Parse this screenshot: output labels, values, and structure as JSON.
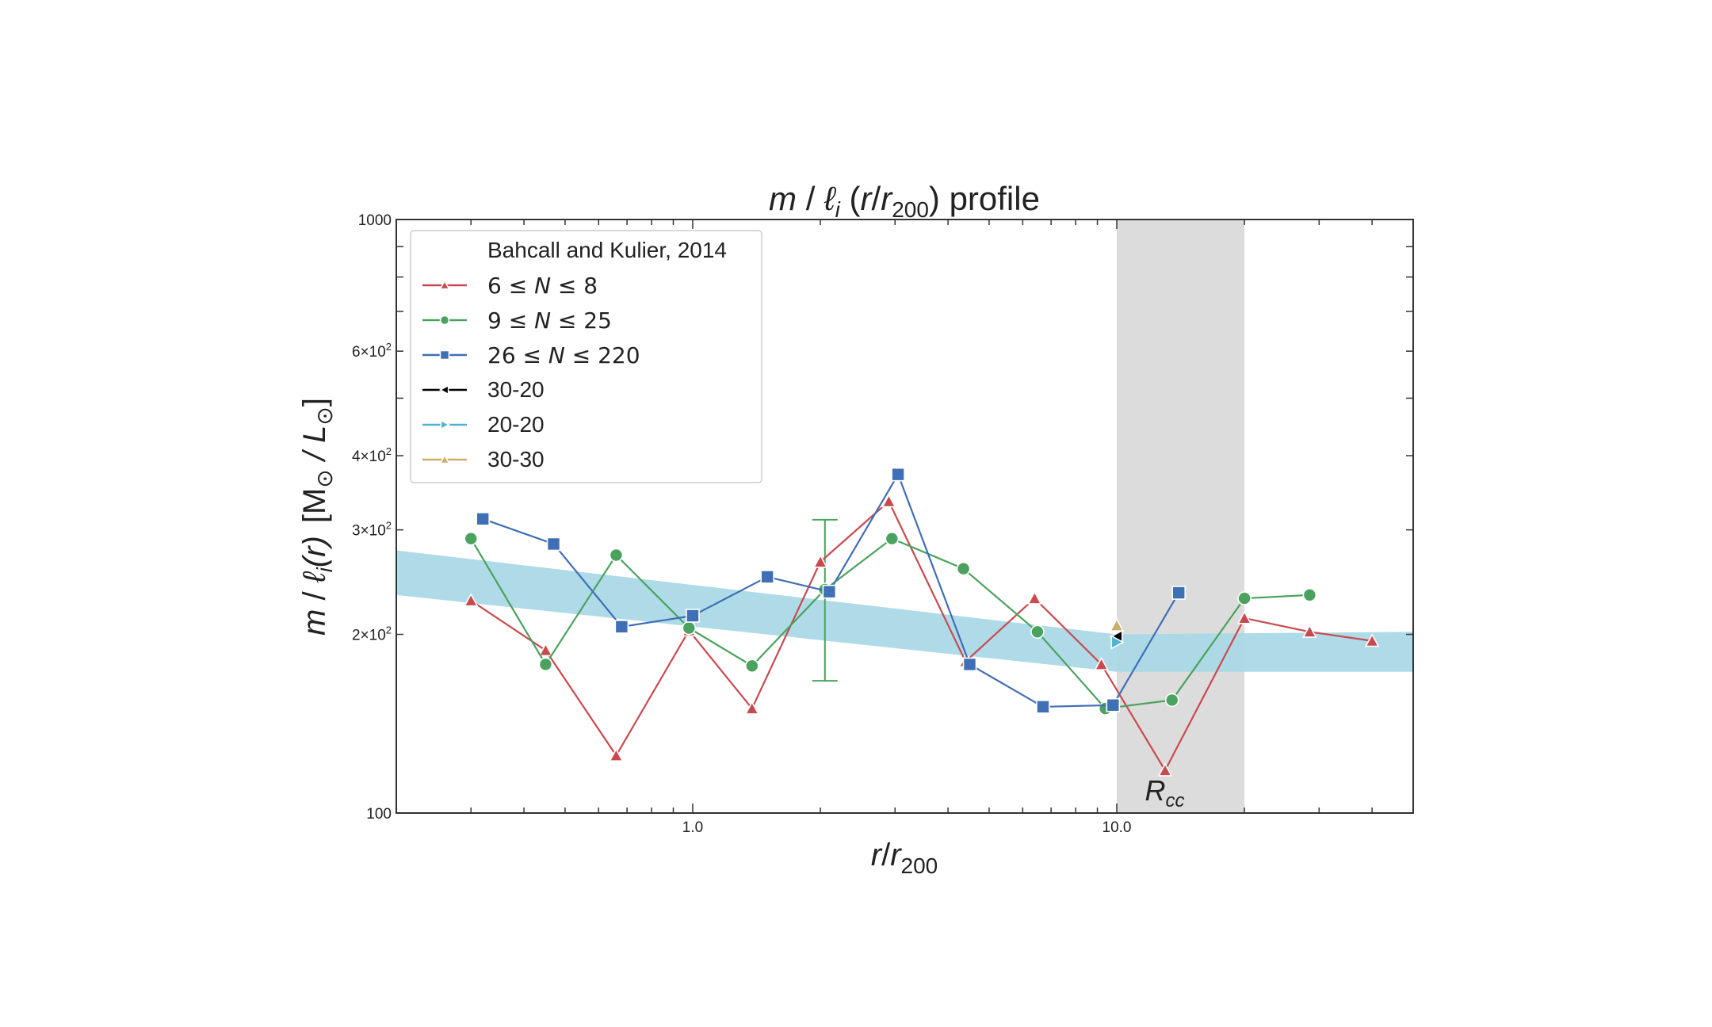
{
  "chart_data": {
    "type": "line",
    "title": "m /  ℓi (r/r200) profile",
    "title_parts": {
      "m": "m",
      "slash": " / ",
      "ell": "ℓ",
      "sub_i": "i",
      "open": " (",
      "r": "r",
      "over": "/",
      "r2": "r",
      "sub200": "200",
      "close": ") ",
      "word": "profile"
    },
    "xlabel": "r/r200",
    "xlabel_parts": {
      "r": "r",
      "over": "/",
      "r2": "r",
      "sub200": "200"
    },
    "ylabel": "m /  ℓi(r)  [M⊙ / L⊙]",
    "ylabel_parts": {
      "m": "m",
      "slash": " / ",
      "ell": "ℓ",
      "sub_i": "i",
      "arg": "(r)",
      "open": "[M",
      "sun1": "⊙",
      "mid": " / L",
      "sun2": "⊙",
      "close": "]"
    },
    "xscale": "log",
    "yscale": "log",
    "xlim": [
      0.2,
      50
    ],
    "ylim": [
      100,
      1000
    ],
    "x_ticks": [
      {
        "value": 1.0,
        "label": "1.0"
      },
      {
        "value": 10.0,
        "label": "10.0"
      }
    ],
    "y_ticks": [
      {
        "value": 100,
        "base": "100",
        "exp": ""
      },
      {
        "value": 200,
        "base": "2×10",
        "exp": "2"
      },
      {
        "value": 300,
        "base": "3×10",
        "exp": "2"
      },
      {
        "value": 400,
        "base": "4×10",
        "exp": "2"
      },
      {
        "value": 600,
        "base": "6×10",
        "exp": "2"
      },
      {
        "value": 1000,
        "base": "1000",
        "exp": ""
      }
    ],
    "shaded_region": {
      "x_start": 10.0,
      "x_end": 20.0,
      "label": "R",
      "label_sub": "cc",
      "color": "#dcdcdc"
    },
    "reference_band": {
      "name": "Bahcall and Kulier, 2014",
      "color": "#a8d8e6",
      "points": [
        {
          "x": 0.2,
          "lower": 233,
          "upper": 277
        },
        {
          "x": 10.0,
          "lower": 173,
          "upper": 200
        },
        {
          "x": 50,
          "lower": 173,
          "upper": 202
        }
      ]
    },
    "series": [
      {
        "name": "6 ≤ N ≤ 8",
        "legend_parts": {
          "a": "6 ≤ ",
          "n": "N",
          "b": " ≤ 8"
        },
        "color": "#c94a4e",
        "marker": "triangle-up",
        "x": [
          0.3,
          0.45,
          0.66,
          0.98,
          1.38,
          2.0,
          2.9,
          4.4,
          6.4,
          9.2,
          13.0,
          20.0,
          28.5,
          40.0
        ],
        "y": [
          228,
          188,
          125,
          203,
          150,
          265,
          335,
          180,
          230,
          178,
          118,
          213,
          202,
          195
        ]
      },
      {
        "name": "9 ≤ N ≤ 25",
        "legend_parts": {
          "a": "9 ≤ ",
          "n": "N",
          "b": " ≤ 25"
        },
        "color": "#4aa25e",
        "marker": "circle",
        "x": [
          0.3,
          0.45,
          0.66,
          0.98,
          1.38,
          2.05,
          2.95,
          4.35,
          6.5,
          9.4,
          13.5,
          20.0,
          28.5
        ],
        "y": [
          290,
          178,
          272,
          205,
          177,
          238,
          290,
          258,
          202,
          150,
          155,
          230,
          233
        ]
      },
      {
        "name": "26 ≤ N ≤ 220",
        "legend_parts": {
          "a": "26 ≤ ",
          "n": "N",
          "b": " ≤ 220"
        },
        "color": "#3f6fb4",
        "marker": "square",
        "x": [
          0.32,
          0.47,
          0.68,
          1.0,
          1.5,
          2.1,
          3.05,
          4.5,
          6.7,
          9.8,
          14.0
        ],
        "y": [
          313,
          284,
          206,
          215,
          250,
          236,
          372,
          178,
          151,
          152,
          235
        ]
      },
      {
        "name": "30-20",
        "color": "#000000",
        "marker": "triangle-left",
        "x": [
          10.0
        ],
        "y": [
          198
        ]
      },
      {
        "name": "20-20",
        "color": "#4fb4d4",
        "marker": "triangle-right",
        "x": [
          10.0
        ],
        "y": [
          194
        ]
      },
      {
        "name": "30-30",
        "color": "#c8b06a",
        "marker": "triangle-up",
        "x": [
          10.0
        ],
        "y": [
          207
        ]
      }
    ],
    "error_bar": {
      "series": "9 ≤ N ≤ 25",
      "x": 2.05,
      "y": 238,
      "y_low": 167,
      "y_high": 312,
      "color": "#4aa25e"
    },
    "legend": {
      "position": "top-left",
      "title": "Bahcall and Kulier, 2014"
    }
  }
}
